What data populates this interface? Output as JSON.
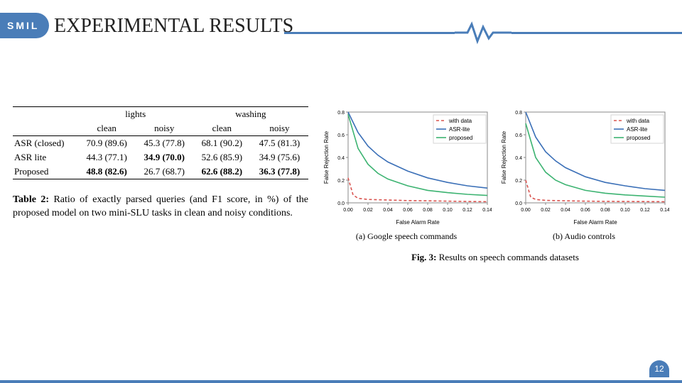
{
  "header": {
    "badge": "SMIL",
    "title": "EXPERIMENTAL RESULTS",
    "accent_color": "#4a7db8"
  },
  "table": {
    "group_headers": [
      "lights",
      "washing"
    ],
    "sub_headers": [
      "clean",
      "noisy",
      "clean",
      "noisy"
    ],
    "rows": [
      {
        "label": "ASR (closed)",
        "cells": [
          "70.9 (89.6)",
          "45.3 (77.8)",
          "68.1 (90.2)",
          "47.5 (81.3)"
        ],
        "bold": [
          false,
          false,
          false,
          false
        ]
      },
      {
        "label": "ASR lite",
        "cells": [
          "44.3 (77.1)",
          "34.9 (70.0)",
          "52.6 (85.9)",
          "34.9 (75.6)"
        ],
        "bold": [
          false,
          true,
          false,
          false
        ]
      },
      {
        "label": "Proposed",
        "cells": [
          "48.8 (82.6)",
          "26.7 (68.7)",
          "62.6 (88.2)",
          "36.3 (77.8)"
        ],
        "bold": [
          true,
          false,
          true,
          true
        ]
      }
    ],
    "caption_label": "Table 2:",
    "caption_text": "Ratio of exactly parsed queries (and F1 score, in %) of the proposed model on two mini-SLU tasks in clean and noisy conditions."
  },
  "charts": {
    "shared": {
      "type": "line",
      "xlabel": "False Alarm Rate",
      "ylabel": "False Rejection Rate",
      "xlim": [
        0.0,
        0.14
      ],
      "ylim": [
        0.0,
        0.8
      ],
      "xtick_step": 0.02,
      "ytick_step": 0.2,
      "label_fontsize": 8,
      "tick_fontsize": 7,
      "background_color": "#ffffff",
      "grid_color": "#d6d6d6",
      "border_color": "#888888",
      "line_width": 1.6,
      "legend_fontsize": 8,
      "legend_pos": "upper-right",
      "series_meta": [
        {
          "name": "with data",
          "color": "#d9534f",
          "dash": "4,3"
        },
        {
          "name": "ASR-lite",
          "color": "#3a6fb7",
          "dash": ""
        },
        {
          "name": "proposed",
          "color": "#3cb371",
          "dash": ""
        }
      ]
    },
    "panels": [
      {
        "subcaption": "(a) Google speech commands",
        "series": {
          "with_data": [
            [
              0.0,
              0.22
            ],
            [
              0.005,
              0.07
            ],
            [
              0.01,
              0.04
            ],
            [
              0.02,
              0.03
            ],
            [
              0.04,
              0.025
            ],
            [
              0.06,
              0.02
            ],
            [
              0.08,
              0.018
            ],
            [
              0.1,
              0.015
            ],
            [
              0.12,
              0.012
            ],
            [
              0.14,
              0.01
            ]
          ],
          "asr_lite": [
            [
              0.0,
              0.8
            ],
            [
              0.01,
              0.62
            ],
            [
              0.02,
              0.5
            ],
            [
              0.03,
              0.42
            ],
            [
              0.04,
              0.36
            ],
            [
              0.06,
              0.28
            ],
            [
              0.08,
              0.22
            ],
            [
              0.1,
              0.18
            ],
            [
              0.12,
              0.15
            ],
            [
              0.14,
              0.13
            ]
          ],
          "proposed": [
            [
              0.0,
              0.78
            ],
            [
              0.01,
              0.48
            ],
            [
              0.02,
              0.34
            ],
            [
              0.03,
              0.26
            ],
            [
              0.04,
              0.21
            ],
            [
              0.06,
              0.15
            ],
            [
              0.08,
              0.11
            ],
            [
              0.1,
              0.09
            ],
            [
              0.12,
              0.075
            ],
            [
              0.14,
              0.065
            ]
          ]
        }
      },
      {
        "subcaption": "(b) Audio controls",
        "series": {
          "with_data": [
            [
              0.0,
              0.2
            ],
            [
              0.005,
              0.05
            ],
            [
              0.01,
              0.03
            ],
            [
              0.02,
              0.022
            ],
            [
              0.04,
              0.018
            ],
            [
              0.06,
              0.015
            ],
            [
              0.08,
              0.013
            ],
            [
              0.1,
              0.012
            ],
            [
              0.12,
              0.011
            ],
            [
              0.14,
              0.01
            ]
          ],
          "asr_lite": [
            [
              0.0,
              0.8
            ],
            [
              0.01,
              0.58
            ],
            [
              0.02,
              0.45
            ],
            [
              0.03,
              0.37
            ],
            [
              0.04,
              0.31
            ],
            [
              0.06,
              0.23
            ],
            [
              0.08,
              0.18
            ],
            [
              0.1,
              0.15
            ],
            [
              0.12,
              0.125
            ],
            [
              0.14,
              0.11
            ]
          ],
          "proposed": [
            [
              0.0,
              0.7
            ],
            [
              0.01,
              0.4
            ],
            [
              0.02,
              0.27
            ],
            [
              0.03,
              0.2
            ],
            [
              0.04,
              0.16
            ],
            [
              0.06,
              0.11
            ],
            [
              0.08,
              0.085
            ],
            [
              0.1,
              0.07
            ],
            [
              0.12,
              0.06
            ],
            [
              0.14,
              0.05
            ]
          ]
        }
      }
    ],
    "fig_label": "Fig. 3:",
    "fig_text": "Results on speech commands datasets"
  },
  "footer": {
    "page": "12"
  }
}
